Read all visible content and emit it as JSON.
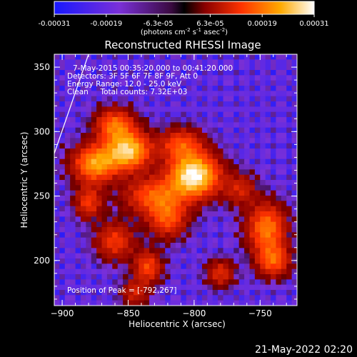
{
  "chart_data": {
    "type": "heatmap",
    "title": "Reconstructed RHESSI Image",
    "xlabel": "Heliocentric X (arcsec)",
    "ylabel": "Heliocentric Y (arcsec)",
    "xlim": [
      -906,
      -722
    ],
    "ylim": [
      165,
      360
    ],
    "xticks": [
      -900,
      -850,
      -800,
      -750
    ],
    "yticks": [
      200,
      250,
      300,
      350
    ],
    "colorbar": {
      "ticks": [
        "-0.00031",
        "-0.00019",
        "-6.3e-05",
        "6.3e-05",
        "0.00019",
        "0.00031"
      ],
      "unit_text": "(photons cm",
      "unit_sup1": "-2",
      "unit_mid": " s",
      "unit_sup2": "-1",
      "unit_mid2": " asec",
      "unit_sup3": "-2",
      "unit_end": ")",
      "range": [
        -0.00031,
        0.00031
      ]
    },
    "annotations": [
      "7-May-2015 00:35:20.000 to 00:41:20.000",
      "Detectors: 3F 5F 6F 7F 8F 9F, Att 0",
      "Energy Range: 12.0 - 25.0 keV",
      "Clean     Total counts: 7.32E+03"
    ],
    "peak_label": "Position of Peak = [-792,267]",
    "peak": [
      -792,
      267
    ],
    "timestamp": "21-May-2022 02:20"
  },
  "colors": {
    "background": "#000000",
    "foreground": "#ffffff"
  }
}
